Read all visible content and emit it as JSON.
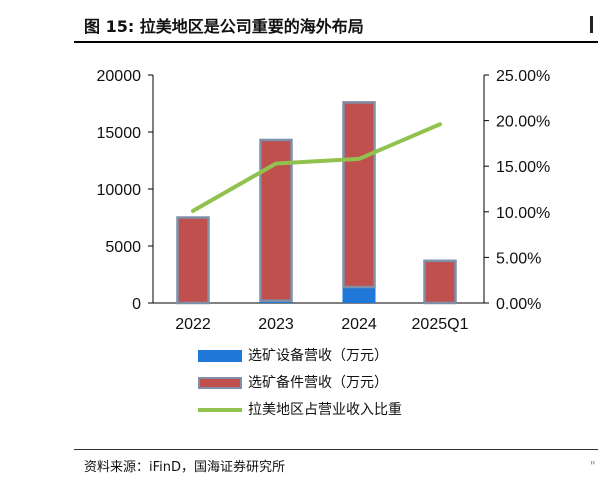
{
  "header": {
    "title": "图 15:  拉美地区是公司重要的海外布局"
  },
  "footer": {
    "source": "资料来源：iFinD，国海证券研究所"
  },
  "colors": {
    "equipment": "#1F77D8",
    "spare_parts": "#C0504D",
    "spare_parts_border": "#7F8FA8",
    "ratio_line": "#92C24E",
    "axis": "#000000"
  },
  "chart_data": {
    "type": "bar",
    "stacked": true,
    "categories": [
      "2022",
      "2023",
      "2024",
      "2025Q1"
    ],
    "series": [
      {
        "name": "选矿设备营收（万元）",
        "type": "bar",
        "axis": "left",
        "values": [
          0,
          200,
          1400,
          0
        ]
      },
      {
        "name": "选矿备件营收（万元）",
        "type": "bar",
        "axis": "left",
        "values": [
          7500,
          14100,
          16200,
          3700
        ]
      },
      {
        "name": "拉美地区占营业收入比重",
        "type": "line",
        "axis": "right",
        "values": [
          0.101,
          0.153,
          0.158,
          0.196
        ]
      }
    ],
    "y_left": {
      "ylim": [
        0,
        20000
      ],
      "ticks": [
        "0",
        "5000",
        "10000",
        "15000",
        "20000"
      ]
    },
    "y_right": {
      "ylim": [
        0,
        0.25
      ],
      "ticks": [
        "0.00%",
        "5.00%",
        "10.00%",
        "15.00%",
        "20.00%",
        "25.00%"
      ]
    },
    "grid": false,
    "legend_position": "bottom"
  }
}
